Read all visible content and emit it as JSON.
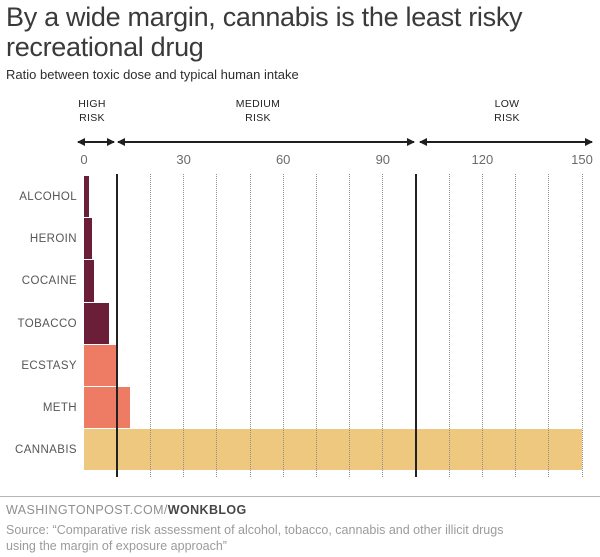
{
  "header": {
    "title_lines": [
      "By a wide margin, cannabis is the least risky",
      "recreational drug"
    ],
    "subtitle": "Ratio between toxic dose and typical human intake"
  },
  "chart_data": {
    "type": "bar",
    "orientation": "horizontal",
    "title": "By a wide margin, cannabis is the least risky recreational drug",
    "subtitle": "Ratio between toxic dose and typical human intake",
    "categories": [
      "ALCOHOL",
      "HEROIN",
      "COCAINE",
      "TOBACCO",
      "ECSTASY",
      "METH",
      "CANNABIS"
    ],
    "values": [
      1.5,
      2.5,
      3,
      7.5,
      10,
      14,
      150
    ],
    "bar_colors": [
      "#6b1e38",
      "#6b1e38",
      "#6b1e38",
      "#6b1e38",
      "#ee7c64",
      "#ee7c64",
      "#edc87e"
    ],
    "xlim": [
      0,
      150
    ],
    "x_ticks": [
      0,
      30,
      60,
      90,
      120,
      150
    ],
    "minor_gridline_step": 10,
    "zone_boundaries": [
      10,
      100
    ],
    "zones": [
      {
        "label": "HIGH RISK",
        "label_lines": [
          "HIGH",
          "RISK"
        ],
        "from": 0,
        "to": 10
      },
      {
        "label": "MEDIUM RISK",
        "label_lines": [
          "MEDIUM",
          "RISK"
        ],
        "from": 10,
        "to": 100
      },
      {
        "label": "LOW RISK",
        "label_lines": [
          "LOW",
          "RISK"
        ],
        "from": 100,
        "to": 150
      }
    ],
    "grid": "vertical-dotted",
    "legend": "none",
    "colors": {
      "high_risk_bar": "#6b1e38",
      "medium_risk_bar": "#ee7c64",
      "low_risk_bar": "#edc87e",
      "boundary_line": "#222222",
      "gridline": "#8f8f8f"
    }
  },
  "footer": {
    "brand_prefix": "WASHINGTONPOST.COM/",
    "brand_bold": "WONKBLOG",
    "source_lines": [
      "Source: “Comparative risk assessment of alcohol, tobacco, cannabis and other illicit drugs",
      "using the margin of exposure approach”"
    ]
  }
}
